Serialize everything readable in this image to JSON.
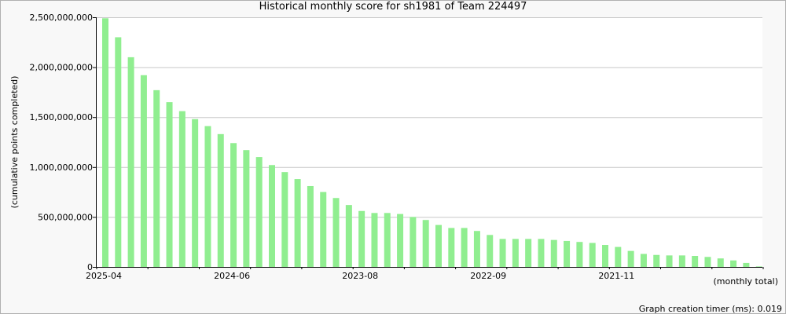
{
  "chart_data": {
    "type": "bar",
    "title": "Historical monthly score for sh1981 of Team 224497",
    "xlabel": "(monthly total)",
    "ylabel": "(cumulative points completed)",
    "ylim": [
      0,
      2500000000
    ],
    "yticks": [
      0,
      500000000,
      1000000000,
      1500000000,
      2000000000,
      2500000000
    ],
    "ytick_labels": [
      "0",
      "500,000,000",
      "1,000,000,000",
      "1,500,000,000",
      "2,000,000,000",
      "2,500,000,000"
    ],
    "xtick_labels": [
      "2025-04",
      "2024-06",
      "2023-08",
      "2022-09",
      "2021-11"
    ],
    "grid": true,
    "bar_color": "#90ee90",
    "values": [
      2490000000,
      2300000000,
      2100000000,
      1920000000,
      1770000000,
      1650000000,
      1560000000,
      1480000000,
      1410000000,
      1330000000,
      1240000000,
      1170000000,
      1100000000,
      1020000000,
      950000000,
      880000000,
      810000000,
      750000000,
      690000000,
      620000000,
      560000000,
      540000000,
      540000000,
      530000000,
      500000000,
      470000000,
      420000000,
      390000000,
      390000000,
      360000000,
      320000000,
      280000000,
      280000000,
      280000000,
      280000000,
      270000000,
      260000000,
      250000000,
      240000000,
      220000000,
      200000000,
      160000000,
      130000000,
      120000000,
      115000000,
      115000000,
      110000000,
      100000000,
      85000000,
      65000000,
      40000000,
      5000000
    ]
  },
  "footer": {
    "timer_text": "Graph creation timer (ms): 0.019"
  }
}
